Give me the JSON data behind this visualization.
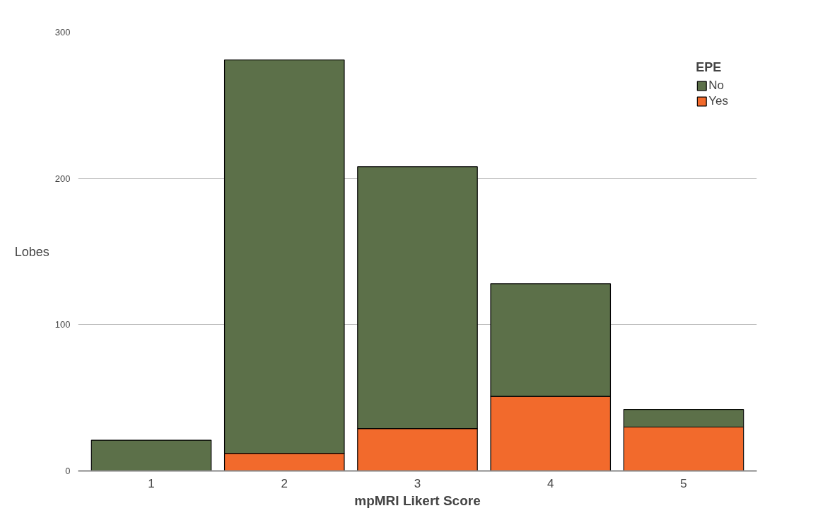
{
  "chart_data": {
    "type": "bar",
    "stacked": true,
    "xlabel": "mpMRI Likert Score",
    "ylabel": "Lobes",
    "legend_title": "EPE",
    "categories": [
      "1",
      "2",
      "3",
      "4",
      "5"
    ],
    "series": [
      {
        "name": "Yes",
        "color": "#f26a2c",
        "values": [
          0,
          12,
          29,
          51,
          30
        ]
      },
      {
        "name": "No",
        "color": "#5c7049",
        "values": [
          21,
          269,
          179,
          77,
          12
        ]
      }
    ],
    "ylim": [
      0,
      300
    ],
    "yticks": [
      0,
      100,
      200,
      300
    ],
    "grid": "y",
    "legend": "top right"
  }
}
